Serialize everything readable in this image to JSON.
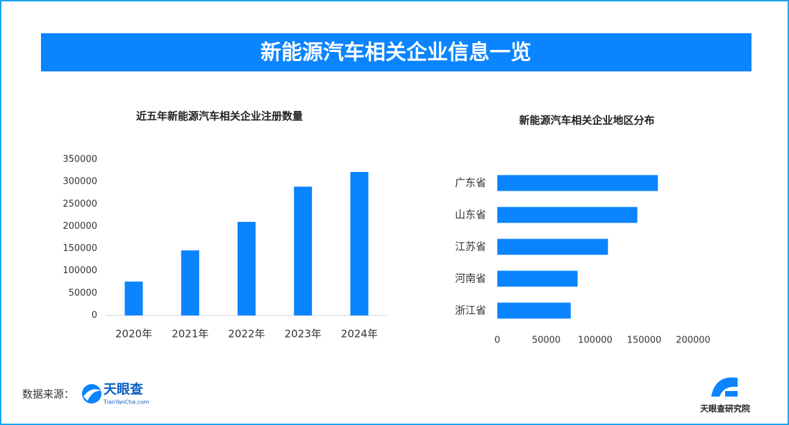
{
  "header": {
    "title": "新能源汽车相关企业信息一览"
  },
  "chart_data": [
    {
      "type": "bar",
      "title": "近五年新能源汽车相关企业注册数量",
      "categories": [
        "2020年",
        "2021年",
        "2022年",
        "2023年",
        "2024年"
      ],
      "values": [
        76000,
        146000,
        210000,
        289000,
        322000
      ],
      "color": "#0a84ff",
      "ylim": [
        0,
        350000
      ],
      "yticks": [
        0,
        50000,
        100000,
        150000,
        200000,
        250000,
        300000,
        350000
      ],
      "grid": false
    },
    {
      "type": "bar",
      "orientation": "horizontal",
      "title": "新能源汽车相关企业地区分布",
      "categories": [
        "广东省",
        "山东省",
        "江苏省",
        "河南省",
        "浙江省"
      ],
      "values": [
        164000,
        143000,
        113000,
        82000,
        75000
      ],
      "color": "#0a84ff",
      "xlim": [
        0,
        200000
      ],
      "xticks": [
        0,
        50000,
        100000,
        150000,
        200000
      ],
      "grid": false
    }
  ],
  "footer": {
    "source_label": "数据来源：",
    "logo_name": "天眼查",
    "logo_url": "TianYanCha.com",
    "institute": "天眼查研究院"
  }
}
